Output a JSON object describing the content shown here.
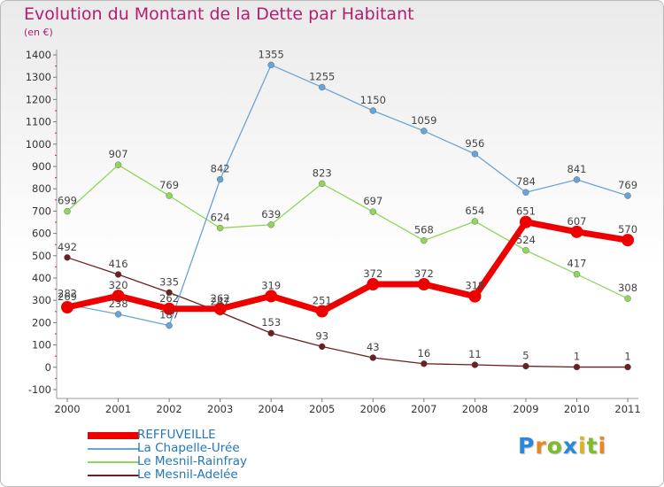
{
  "title": "Evolution du Montant de la Dette par Habitant",
  "unit": "(en €)",
  "logo": {
    "text": "Proxiti",
    "letters": [
      {
        "ch": "P",
        "color": "#2b88d8"
      },
      {
        "ch": "r",
        "color": "#e58a1f"
      },
      {
        "ch": "o",
        "color": "#7dbb2a"
      },
      {
        "ch": "x",
        "color": "#2b88d8"
      },
      {
        "ch": "i",
        "color": "#e0b21a"
      },
      {
        "ch": "t",
        "color": "#7dbb2a"
      },
      {
        "ch": "i",
        "color": "#e58a1f"
      }
    ]
  },
  "chart_data": {
    "type": "line",
    "title": "Evolution du Montant de la Dette par Habitant",
    "ylabel": "(en €)",
    "xlabel": "",
    "categories": [
      "2000",
      "2001",
      "2002",
      "2003",
      "2004",
      "2005",
      "2006",
      "2007",
      "2008",
      "2009",
      "2010",
      "2011"
    ],
    "ylim": [
      -100,
      1400
    ],
    "yticks": [
      -100,
      0,
      100,
      200,
      300,
      400,
      500,
      600,
      700,
      800,
      900,
      1000,
      1100,
      1200,
      1300,
      1400
    ],
    "grid": false,
    "legend_position": "bottom-left",
    "series": [
      {
        "name": "Le Mesnil-Adelée",
        "color": "#6b1f1f",
        "width": 1.3,
        "marker": 3.5,
        "values": [
          492,
          416,
          335,
          247,
          153,
          93,
          43,
          16,
          11,
          5,
          1,
          1
        ],
        "labels": [
          "492",
          "416",
          "335",
          "247",
          "153",
          "93",
          "43",
          "16",
          "11",
          "5",
          "1",
          "1"
        ]
      },
      {
        "name": "Le Mesnil-Rainfray",
        "color": "#8fd659",
        "width": 1.3,
        "marker": 3.5,
        "values": [
          699,
          907,
          769,
          624,
          639,
          823,
          697,
          568,
          654,
          524,
          417,
          308
        ],
        "labels": [
          "699",
          "907",
          "769",
          "624",
          "639",
          "823",
          "697",
          "568",
          "654",
          "524",
          "417",
          "308"
        ]
      },
      {
        "name": "La Chapelle-Urée",
        "color": "#6aa3d5",
        "width": 1.3,
        "marker": 3.5,
        "values": [
          282,
          238,
          187,
          842,
          1355,
          1255,
          1150,
          1059,
          956,
          784,
          841,
          769
        ],
        "labels": [
          "282",
          "238",
          "187",
          "842",
          "1355",
          "1255",
          "1150",
          "1059",
          "956",
          "784",
          "841",
          "769"
        ]
      },
      {
        "name": "REFFUVEILLE",
        "color": "#ee0000",
        "width": 7,
        "marker": 7,
        "values": [
          269,
          320,
          262,
          262,
          319,
          251,
          372,
          372,
          318,
          651,
          607,
          570
        ],
        "labels": [
          "269",
          "320",
          "262",
          "262",
          "319",
          "251",
          "372",
          "372",
          "318",
          "651",
          "607",
          "570"
        ]
      }
    ],
    "legend_order": [
      "REFFUVEILLE",
      "La Chapelle-Urée",
      "Le Mesnil-Rainfray",
      "Le Mesnil-Adelée"
    ]
  }
}
